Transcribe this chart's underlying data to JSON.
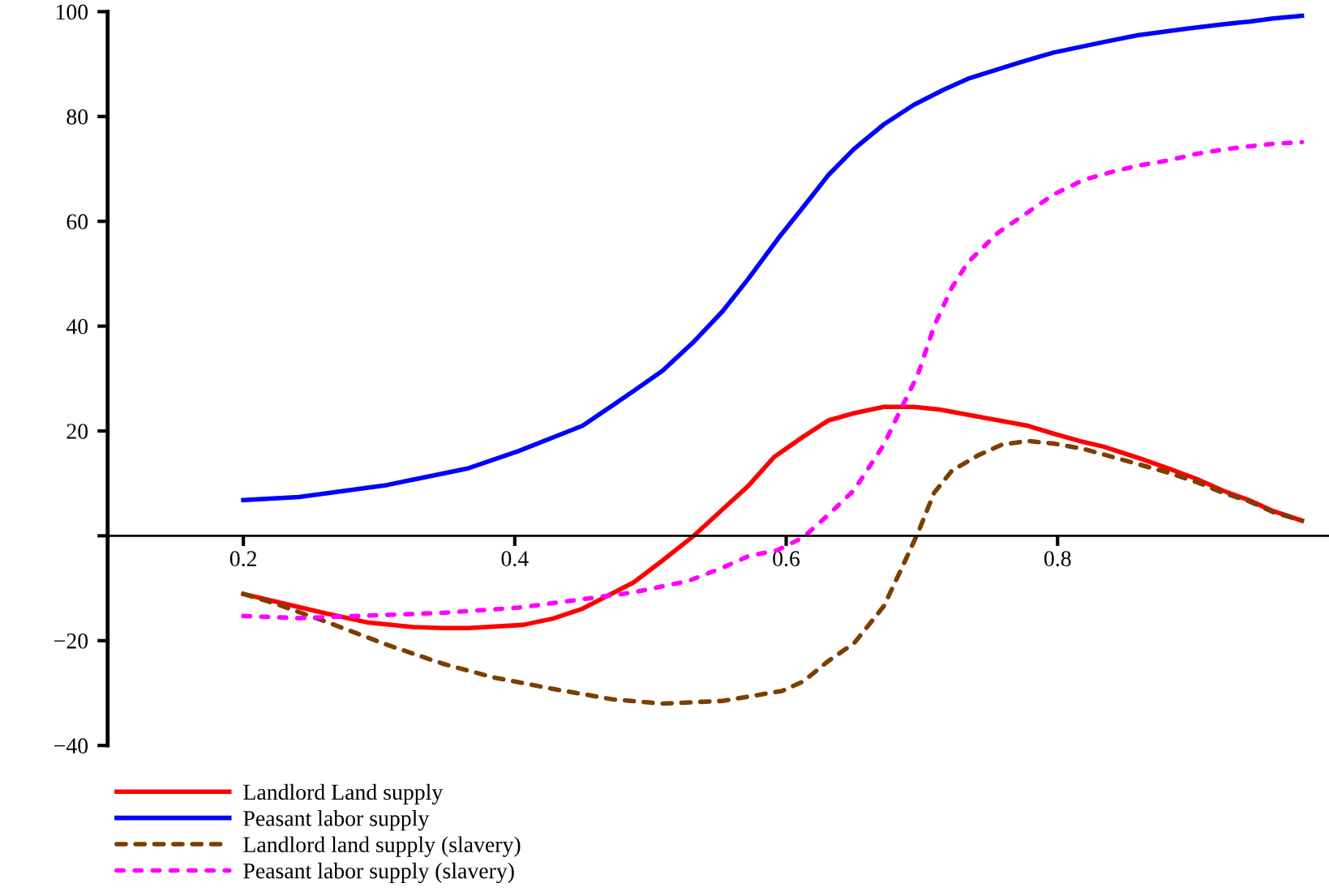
{
  "chart_data": {
    "type": "line",
    "xlim": [
      0.1,
      1.0
    ],
    "ylim": [
      -40,
      100
    ],
    "xticks": [
      0.2,
      0.4,
      0.6,
      0.8
    ],
    "yticks": [
      {
        "value": -40,
        "label": "−40"
      },
      {
        "value": -20,
        "label": "−20"
      },
      {
        "value": 0,
        "label": null
      },
      20,
      40,
      60,
      80,
      100
    ],
    "grid": false,
    "legend": "bottom",
    "marker": "none",
    "series": [
      {
        "name": "Landlord Land supply",
        "color": "#ff0000",
        "line_style": "solid",
        "x": [
          0.2,
          0.259,
          0.291,
          0.325,
          0.347,
          0.366,
          0.406,
          0.428,
          0.45,
          0.4875,
          0.509,
          0.531,
          0.553,
          0.572,
          0.591,
          0.6125,
          0.631,
          0.65,
          0.672,
          0.694,
          0.713,
          0.734,
          0.778,
          0.797,
          0.819,
          0.834,
          0.859,
          0.881,
          0.903,
          0.922,
          0.941,
          0.959,
          0.98
        ],
        "values": [
          -11.1,
          -14.7,
          -16.5,
          -17.4,
          -17.6,
          -17.6,
          -17,
          -15.8,
          -13.9,
          -8.9,
          -4.7,
          -0.2,
          5,
          9.5,
          15,
          18.9,
          22,
          23.4,
          24.6,
          24.6,
          24.1,
          23.1,
          21,
          19.5,
          17.9,
          17,
          14.9,
          12.9,
          10.8,
          8.6,
          6.8,
          4.7,
          2.9
        ]
      },
      {
        "name": "Peasant labor supply",
        "color": "#0000ff",
        "line_style": "solid",
        "x": [
          0.2,
          0.241,
          0.306,
          0.366,
          0.403,
          0.45,
          0.4875,
          0.509,
          0.531,
          0.553,
          0.572,
          0.594,
          0.6125,
          0.631,
          0.65,
          0.672,
          0.694,
          0.716,
          0.734,
          0.772,
          0.797,
          0.834,
          0.859,
          0.897,
          0.922,
          0.941,
          0.959,
          0.98
        ],
        "values": [
          6.8,
          7.4,
          9.7,
          12.9,
          16.2,
          21,
          27.6,
          31.5,
          36.8,
          42.8,
          49,
          56.7,
          62.7,
          68.8,
          73.8,
          78.5,
          82.2,
          85.1,
          87.2,
          90.3,
          92.2,
          94.2,
          95.5,
          96.8,
          97.6,
          98.1,
          98.7,
          99.2
        ]
      },
      {
        "name": "Landlord land supply (slavery)",
        "color": "#7b3f00",
        "line_style": "dashed",
        "x": [
          0.2,
          0.222,
          0.259,
          0.306,
          0.347,
          0.384,
          0.428,
          0.472,
          0.509,
          0.553,
          0.597,
          0.6125,
          0.631,
          0.65,
          0.672,
          0.684,
          0.697,
          0.709,
          0.722,
          0.741,
          0.759,
          0.778,
          0.797,
          0.819,
          0.841,
          0.859,
          0.881,
          0.903,
          0.922,
          0.941,
          0.959,
          0.98
        ],
        "values": [
          -11.1,
          -12.8,
          -16.2,
          -20.8,
          -24.4,
          -27,
          -29.2,
          -31.2,
          -32,
          -31.5,
          -29.6,
          -27.8,
          -23.9,
          -20.5,
          -13.4,
          -6.8,
          0.5,
          8.2,
          12.4,
          15.3,
          17.4,
          18.1,
          17.6,
          16.6,
          15,
          13.7,
          12.1,
          10.2,
          8.2,
          6.6,
          4.5,
          2.9
        ]
      },
      {
        "name": "Peasant labor supply (slavery)",
        "color": "#ff00ff",
        "line_style": "dotted",
        "x": [
          0.2,
          0.241,
          0.284,
          0.347,
          0.403,
          0.45,
          0.4875,
          0.528,
          0.553,
          0.572,
          0.594,
          0.6125,
          0.631,
          0.65,
          0.672,
          0.684,
          0.697,
          0.709,
          0.722,
          0.734,
          0.756,
          0.778,
          0.797,
          0.819,
          0.841,
          0.859,
          0.881,
          0.903,
          0.922,
          0.941,
          0.959,
          0.98
        ],
        "values": [
          -15.3,
          -15.7,
          -15.3,
          -14.7,
          -13.7,
          -12.1,
          -10.8,
          -8.6,
          -6.1,
          -3.9,
          -2.7,
          -0.3,
          4,
          8.7,
          17.4,
          23.9,
          30.7,
          40,
          47.3,
          52.2,
          57.8,
          61.7,
          65.1,
          67.9,
          69.5,
          70.6,
          71.6,
          72.9,
          73.7,
          74.3,
          74.8,
          75.1
        ]
      }
    ]
  }
}
